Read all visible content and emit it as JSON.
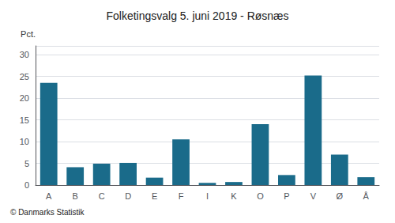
{
  "chart_data": {
    "type": "bar",
    "title": "Folketingsvalg 5. juni 2019 - Røsnæs",
    "ylabel": "Pct.",
    "footer": "© Danmarks Statistik",
    "categories": [
      "A",
      "B",
      "C",
      "D",
      "E",
      "F",
      "I",
      "K",
      "O",
      "P",
      "V",
      "Ø",
      "Å"
    ],
    "values": [
      23.5,
      4.1,
      4.9,
      5.1,
      1.7,
      10.5,
      0.5,
      0.7,
      14.0,
      2.3,
      25.2,
      7.0,
      1.8
    ],
    "color": "#1a6b8a",
    "ylim": [
      0,
      32
    ],
    "yticks": [
      0,
      5,
      10,
      15,
      20,
      25,
      30
    ],
    "grid": true
  }
}
